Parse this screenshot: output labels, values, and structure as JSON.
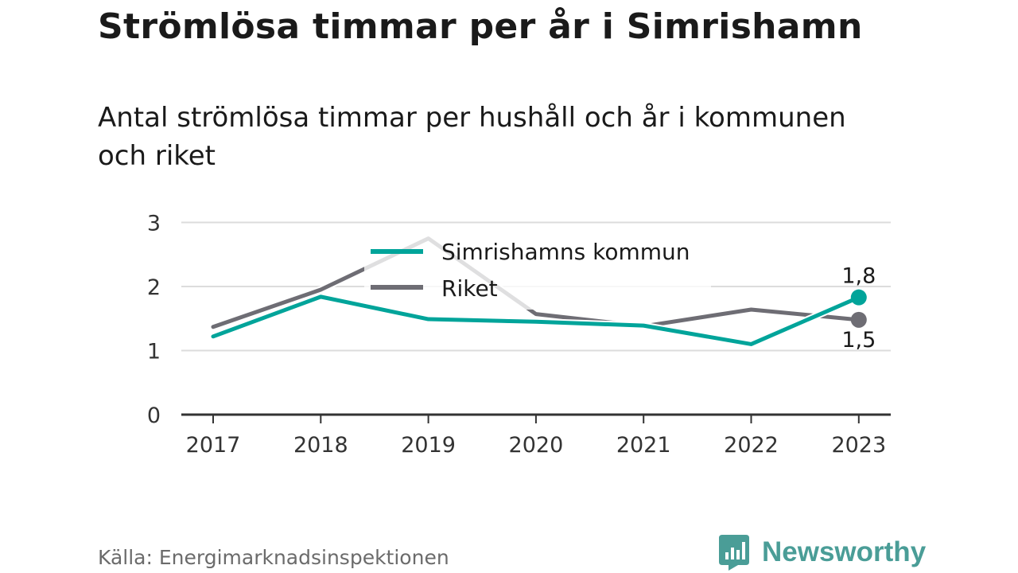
{
  "header": {
    "title": "Strömlösa timmar per år i Simrishamn",
    "subtitle": "Antal strömlösa timmar per hushåll och år i kommunen och riket"
  },
  "footer": {
    "source": "Källa: Energimarknadsinspektionen",
    "brand": "Newsworthy",
    "brand_icon": "bar-chart-icon"
  },
  "colors": {
    "kommun": "#00a49a",
    "riket": "#6e6d74",
    "grid": "#dcdcdc",
    "axis": "#333333",
    "brand": "#4a9d97"
  },
  "chart_data": {
    "type": "line",
    "x": [
      "2017",
      "2018",
      "2019",
      "2020",
      "2021",
      "2022",
      "2023"
    ],
    "ylim": [
      0,
      3
    ],
    "yticks": [
      0,
      1,
      2,
      3
    ],
    "grid": true,
    "legend_position": "top-center",
    "series": [
      {
        "name": "Simrishamns kommun",
        "values": [
          1.22,
          1.84,
          1.49,
          1.45,
          1.39,
          1.1,
          1.83
        ],
        "end_label": "1,8"
      },
      {
        "name": "Riket",
        "values": [
          1.37,
          1.95,
          2.75,
          1.57,
          1.38,
          1.64,
          1.48
        ],
        "end_label": "1,5"
      }
    ]
  }
}
